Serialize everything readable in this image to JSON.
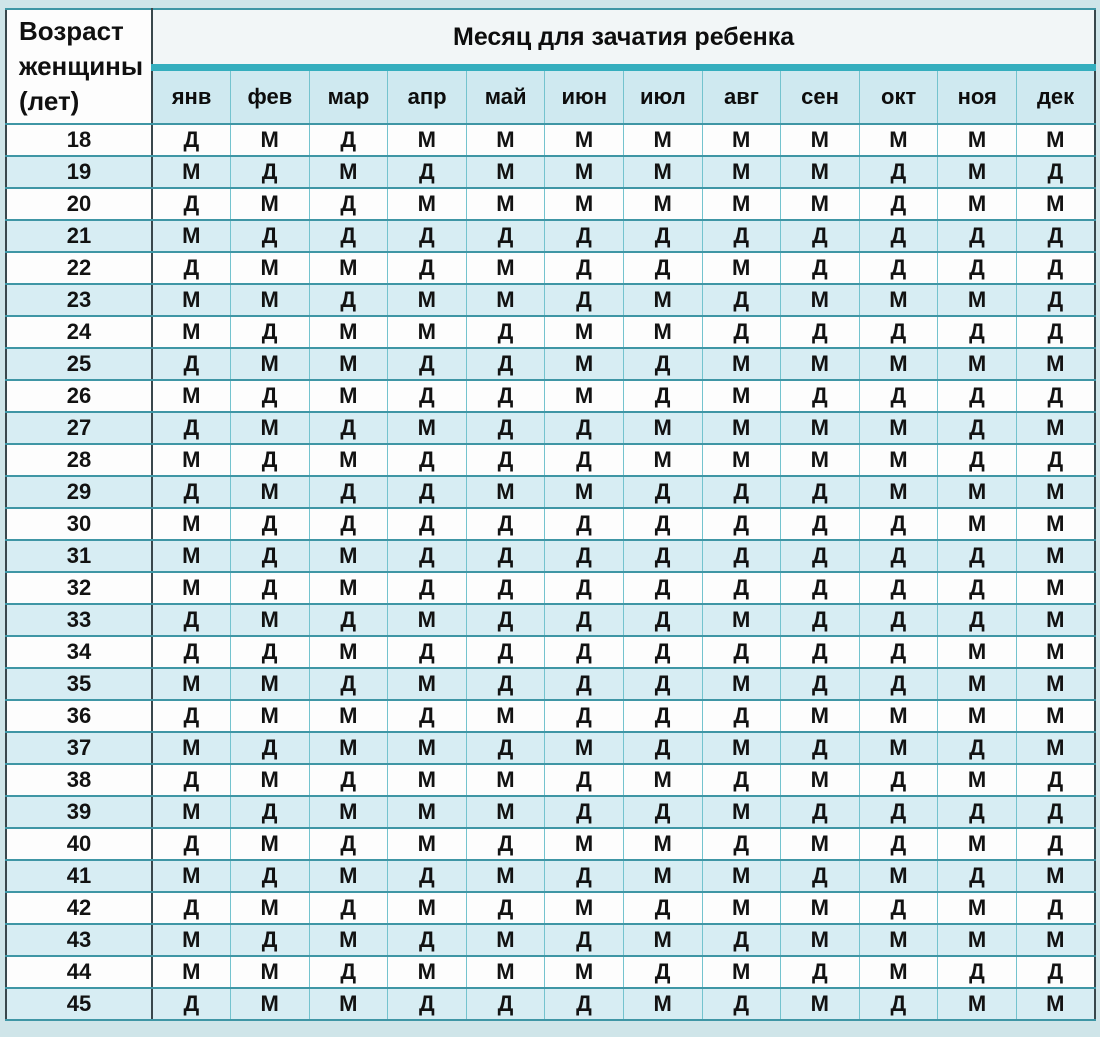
{
  "header": {
    "age_label": "Возраст женщины (лет)",
    "month_banner": "Месяц для зачатия ребенка"
  },
  "months": [
    "янв",
    "фев",
    "мар",
    "апр",
    "май",
    "июн",
    "июл",
    "авг",
    "сен",
    "окт",
    "ноя",
    "дек"
  ],
  "symbols": {
    "girl": "Д",
    "boy": "М"
  },
  "colors": {
    "page_background": "#cfe5e9",
    "accent_teal_bar": "#35aebe",
    "month_row_bg": "#cfe9f0",
    "row_alt_bg": "#d7edf3",
    "row_bg": "#fdfdfd",
    "grid_vertical": "#74c3ce",
    "grid_horizontal": "#3f96a5",
    "outer_border": "#39474c",
    "text": "#121212"
  },
  "chart_data": {
    "type": "table",
    "title": "Месяц для зачатия ребенка",
    "row_header": "Возраст женщины (лет)",
    "columns": [
      "янв",
      "фев",
      "мар",
      "апр",
      "май",
      "июн",
      "июл",
      "авг",
      "сен",
      "окт",
      "ноя",
      "дек"
    ]
  },
  "rows": [
    {
      "age": "18",
      "cells": [
        "Д",
        "М",
        "Д",
        "М",
        "М",
        "М",
        "М",
        "М",
        "М",
        "М",
        "М",
        "М"
      ]
    },
    {
      "age": "19",
      "cells": [
        "М",
        "Д",
        "М",
        "Д",
        "М",
        "М",
        "М",
        "М",
        "М",
        "Д",
        "М",
        "Д"
      ]
    },
    {
      "age": "20",
      "cells": [
        "Д",
        "М",
        "Д",
        "М",
        "М",
        "М",
        "М",
        "М",
        "М",
        "Д",
        "М",
        "М"
      ]
    },
    {
      "age": "21",
      "cells": [
        "М",
        "Д",
        "Д",
        "Д",
        "Д",
        "Д",
        "Д",
        "Д",
        "Д",
        "Д",
        "Д",
        "Д"
      ]
    },
    {
      "age": "22",
      "cells": [
        "Д",
        "М",
        "М",
        "Д",
        "М",
        "Д",
        "Д",
        "М",
        "Д",
        "Д",
        "Д",
        "Д"
      ]
    },
    {
      "age": "23",
      "cells": [
        "М",
        "М",
        "Д",
        "М",
        "М",
        "Д",
        "М",
        "Д",
        "М",
        "М",
        "М",
        "Д"
      ]
    },
    {
      "age": "24",
      "cells": [
        "М",
        "Д",
        "М",
        "М",
        "Д",
        "М",
        "М",
        "Д",
        "Д",
        "Д",
        "Д",
        "Д"
      ]
    },
    {
      "age": "25",
      "cells": [
        "Д",
        "М",
        "М",
        "Д",
        "Д",
        "М",
        "Д",
        "М",
        "М",
        "М",
        "М",
        "М"
      ]
    },
    {
      "age": "26",
      "cells": [
        "М",
        "Д",
        "М",
        "Д",
        "Д",
        "М",
        "Д",
        "М",
        "Д",
        "Д",
        "Д",
        "Д"
      ]
    },
    {
      "age": "27",
      "cells": [
        "Д",
        "М",
        "Д",
        "М",
        "Д",
        "Д",
        "М",
        "М",
        "М",
        "М",
        "Д",
        "М"
      ]
    },
    {
      "age": "28",
      "cells": [
        "М",
        "Д",
        "М",
        "Д",
        "Д",
        "Д",
        "М",
        "М",
        "М",
        "М",
        "Д",
        "Д"
      ]
    },
    {
      "age": "29",
      "cells": [
        "Д",
        "М",
        "Д",
        "Д",
        "М",
        "М",
        "Д",
        "Д",
        "Д",
        "М",
        "М",
        "М"
      ]
    },
    {
      "age": "30",
      "cells": [
        "М",
        "Д",
        "Д",
        "Д",
        "Д",
        "Д",
        "Д",
        "Д",
        "Д",
        "Д",
        "М",
        "М"
      ]
    },
    {
      "age": "31",
      "cells": [
        "М",
        "Д",
        "М",
        "Д",
        "Д",
        "Д",
        "Д",
        "Д",
        "Д",
        "Д",
        "Д",
        "М"
      ]
    },
    {
      "age": "32",
      "cells": [
        "М",
        "Д",
        "М",
        "Д",
        "Д",
        "Д",
        "Д",
        "Д",
        "Д",
        "Д",
        "Д",
        "М"
      ]
    },
    {
      "age": "33",
      "cells": [
        "Д",
        "М",
        "Д",
        "М",
        "Д",
        "Д",
        "Д",
        "М",
        "Д",
        "Д",
        "Д",
        "М"
      ]
    },
    {
      "age": "34",
      "cells": [
        "Д",
        "Д",
        "М",
        "Д",
        "Д",
        "Д",
        "Д",
        "Д",
        "Д",
        "Д",
        "М",
        "М"
      ]
    },
    {
      "age": "35",
      "cells": [
        "М",
        "М",
        "Д",
        "М",
        "Д",
        "Д",
        "Д",
        "М",
        "Д",
        "Д",
        "М",
        "М"
      ]
    },
    {
      "age": "36",
      "cells": [
        "Д",
        "М",
        "М",
        "Д",
        "М",
        "Д",
        "Д",
        "Д",
        "М",
        "М",
        "М",
        "М"
      ]
    },
    {
      "age": "37",
      "cells": [
        "М",
        "Д",
        "М",
        "М",
        "Д",
        "М",
        "Д",
        "М",
        "Д",
        "М",
        "Д",
        "М"
      ]
    },
    {
      "age": "38",
      "cells": [
        "Д",
        "М",
        "Д",
        "М",
        "М",
        "Д",
        "М",
        "Д",
        "М",
        "Д",
        "М",
        "Д"
      ]
    },
    {
      "age": "39",
      "cells": [
        "М",
        "Д",
        "М",
        "М",
        "М",
        "Д",
        "Д",
        "М",
        "Д",
        "Д",
        "Д",
        "Д"
      ]
    },
    {
      "age": "40",
      "cells": [
        "Д",
        "М",
        "Д",
        "М",
        "Д",
        "М",
        "М",
        "Д",
        "М",
        "Д",
        "М",
        "Д"
      ]
    },
    {
      "age": "41",
      "cells": [
        "М",
        "Д",
        "М",
        "Д",
        "М",
        "Д",
        "М",
        "М",
        "Д",
        "М",
        "Д",
        "М"
      ]
    },
    {
      "age": "42",
      "cells": [
        "Д",
        "М",
        "Д",
        "М",
        "Д",
        "М",
        "Д",
        "М",
        "М",
        "Д",
        "М",
        "Д"
      ]
    },
    {
      "age": "43",
      "cells": [
        "М",
        "Д",
        "М",
        "Д",
        "М",
        "Д",
        "М",
        "Д",
        "М",
        "М",
        "М",
        "М"
      ]
    },
    {
      "age": "44",
      "cells": [
        "М",
        "М",
        "Д",
        "М",
        "М",
        "М",
        "Д",
        "М",
        "Д",
        "М",
        "Д",
        "Д"
      ]
    },
    {
      "age": "45",
      "cells": [
        "Д",
        "М",
        "М",
        "Д",
        "Д",
        "Д",
        "М",
        "Д",
        "М",
        "Д",
        "М",
        "М"
      ]
    }
  ]
}
